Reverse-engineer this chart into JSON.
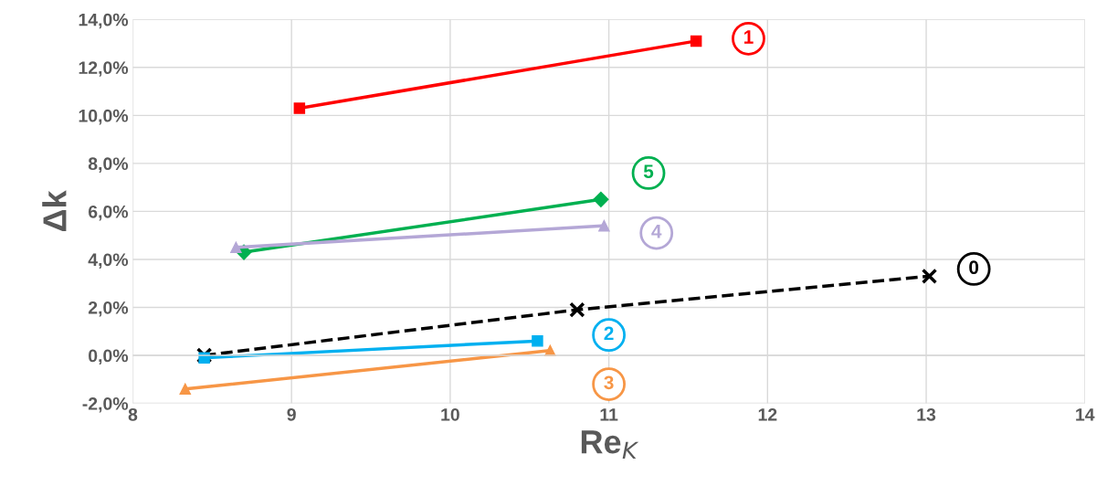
{
  "chart_data": {
    "type": "line",
    "xlabel": "Re$_{K}$",
    "ylabel": "Δk",
    "xlim": [
      8,
      14
    ],
    "xticks": [
      8,
      9,
      10,
      11,
      12,
      13,
      14
    ],
    "ylim": [
      -2,
      14
    ],
    "yticks": [
      {
        "value": -2,
        "label": "-2,0%"
      },
      {
        "value": 0,
        "label": "0,0%"
      },
      {
        "value": 2,
        "label": "2,0%"
      },
      {
        "value": 4,
        "label": "4,0%"
      },
      {
        "value": 6,
        "label": "6,0%"
      },
      {
        "value": 8,
        "label": "8,0%"
      },
      {
        "value": 10,
        "label": "10,0%"
      },
      {
        "value": 12,
        "label": "12,0%"
      },
      {
        "value": 14,
        "label": "14,0%"
      }
    ],
    "grid": true,
    "legend": false,
    "series": [
      {
        "color": "#ff0000",
        "marker": "square",
        "line_style": "solid",
        "x": [
          9.05,
          11.55
        ],
        "values": [
          10.3,
          13.1
        ]
      },
      {
        "color": "#00b050",
        "marker": "diamond",
        "line_style": "solid",
        "x": [
          8.7,
          10.95
        ],
        "values": [
          4.3,
          6.5
        ]
      },
      {
        "color": "#b4a7d6",
        "marker": "triangle",
        "line_style": "solid",
        "x": [
          8.65,
          10.97
        ],
        "values": [
          4.5,
          5.4
        ]
      },
      {
        "color": "#000000",
        "marker": "cross",
        "line_style": "dashed",
        "x": [
          8.45,
          10.8,
          13.02
        ],
        "values": [
          0.0,
          1.9,
          3.3
        ]
      },
      {
        "color": "#00b0f0",
        "marker": "square",
        "line_style": "solid",
        "x": [
          8.45,
          10.55
        ],
        "values": [
          -0.1,
          0.6
        ]
      },
      {
        "color": "#f79646",
        "marker": "triangle",
        "line_style": "solid",
        "x": [
          8.33,
          10.63
        ],
        "values": [
          -1.4,
          0.2
        ]
      }
    ],
    "annotations": [
      {
        "text": "1",
        "x": 11.88,
        "y": 13.2
      },
      {
        "text": "5",
        "x": 11.25,
        "y": 7.6
      },
      {
        "text": "4",
        "x": 11.3,
        "y": 5.1
      },
      {
        "text": "0",
        "x": 13.3,
        "y": 3.6
      },
      {
        "text": "2",
        "x": 11.0,
        "y": 0.85
      },
      {
        "text": "3",
        "x": 11.0,
        "y": -1.2
      }
    ]
  }
}
